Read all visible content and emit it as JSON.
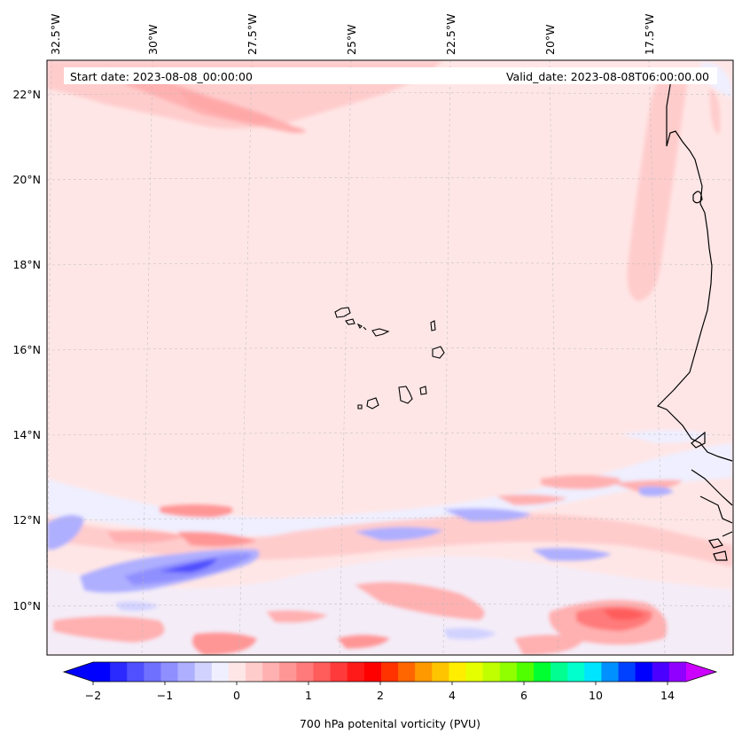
{
  "header": {
    "start_date": "Start date: 2023-08-08_00:00:00",
    "valid_date": "Valid_date: 2023-08-08T06:00:00.00"
  },
  "axes": {
    "lon_labels": [
      "32.5°W",
      "30°W",
      "27.5°W",
      "25°W",
      "22.5°W",
      "20°W",
      "17.5°W"
    ],
    "lat_labels": [
      "22°N",
      "20°N",
      "18°N",
      "16°N",
      "14°N",
      "12°N",
      "10°N"
    ]
  },
  "colorbar": {
    "label": "700 hPa potenital vorticity (PVU)",
    "tick_labels": [
      "−2",
      "−1",
      "0",
      "1",
      "2",
      "4",
      "6",
      "10",
      "14"
    ],
    "colors": [
      "#0000ff",
      "#2a2aff",
      "#5050ff",
      "#7070ff",
      "#8f8fff",
      "#afafff",
      "#d2d2ff",
      "#efefff",
      "#ffe6e6",
      "#ffcccc",
      "#ffb0b0",
      "#ff9696",
      "#ff7a7a",
      "#ff5c5c",
      "#ff3a3a",
      "#ff1a1a",
      "#ff0000",
      "#ff3300",
      "#ff6600",
      "#ff9900",
      "#ffc400",
      "#ffee00",
      "#e6ff00",
      "#c0ff00",
      "#90ff00",
      "#50ff00",
      "#00ff30",
      "#00ff90",
      "#00ffcc",
      "#00e5ff",
      "#0090ff",
      "#0040ff",
      "#0000ff",
      "#4a00ff",
      "#9000ff"
    ],
    "under_color": "#0000ff",
    "over_color": "#cc00ff"
  },
  "map": {
    "background_color": "#ffe6e6",
    "coastline_color": "#000000"
  }
}
